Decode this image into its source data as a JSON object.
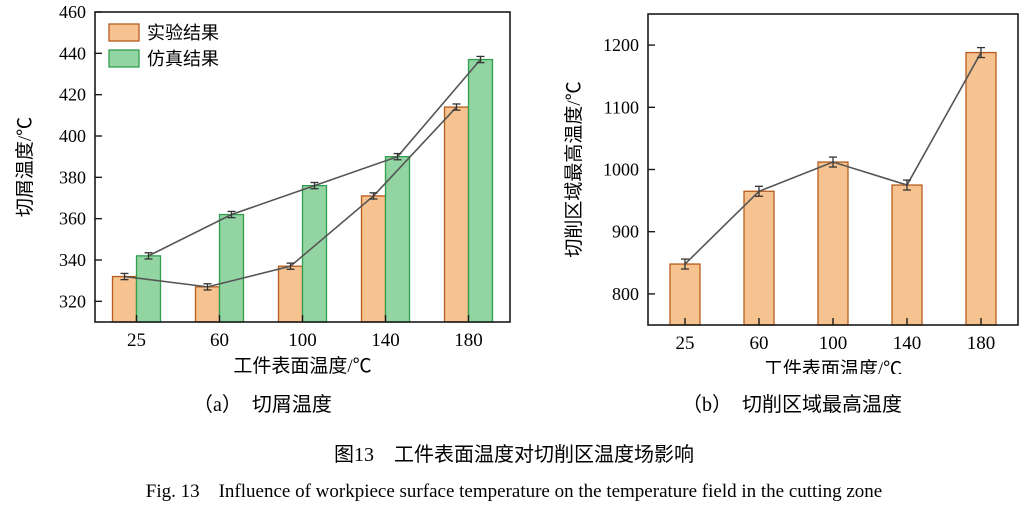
{
  "figure": {
    "caption_a": "（a）　切屑温度",
    "caption_b": "（b）　切削区域最高温度",
    "caption_cn": "图13　工件表面温度对切削区温度场影响",
    "caption_en": "Fig. 13　Influence of workpiece surface temperature on the temperature field in the cutting zone"
  },
  "colors": {
    "experiment_fill": "#F6C28F",
    "experiment_border": "#B75C1C",
    "simulation_fill": "#93D4A3",
    "simulation_border": "#2F9E4E",
    "overlay_line": "#555555",
    "axis": "#1a1a1a"
  },
  "chart_data": [
    {
      "type": "bar",
      "title": "(a) 切屑温度",
      "categories": [
        "25",
        "60",
        "100",
        "140",
        "180"
      ],
      "series": [
        {
          "name": "实验结果",
          "values": [
            332,
            327,
            337,
            371,
            414
          ],
          "color": "#F6C28F",
          "border": "#B75C1C"
        },
        {
          "name": "仿真结果",
          "values": [
            342,
            362,
            376,
            390,
            437
          ],
          "color": "#93D4A3",
          "border": "#2F9E4E"
        }
      ],
      "xlabel": "工件表面温度/℃",
      "ylabel": "切屑温度/℃",
      "ylim": [
        310,
        460
      ],
      "yticks": [
        320,
        340,
        360,
        380,
        400,
        420,
        440,
        460
      ],
      "legend": true,
      "legend_position": "top-left",
      "grid": false,
      "line_overlay": true,
      "error_bar": 1.5
    },
    {
      "type": "bar",
      "title": "(b) 切削区域最高温度",
      "categories": [
        "25",
        "60",
        "100",
        "140",
        "180"
      ],
      "series": [
        {
          "name": "切削区域最高温度",
          "values": [
            848,
            965,
            1012,
            975,
            1188
          ],
          "color": "#F6C28F",
          "border": "#B75C1C"
        }
      ],
      "xlabel": "工件表面温度/℃",
      "ylabel": "切削区域最高温度/℃",
      "ylim": [
        750,
        1250
      ],
      "yticks": [
        800,
        900,
        1000,
        1100,
        1200
      ],
      "legend": false,
      "grid": false,
      "line_overlay": true,
      "error_bar": 8
    }
  ]
}
